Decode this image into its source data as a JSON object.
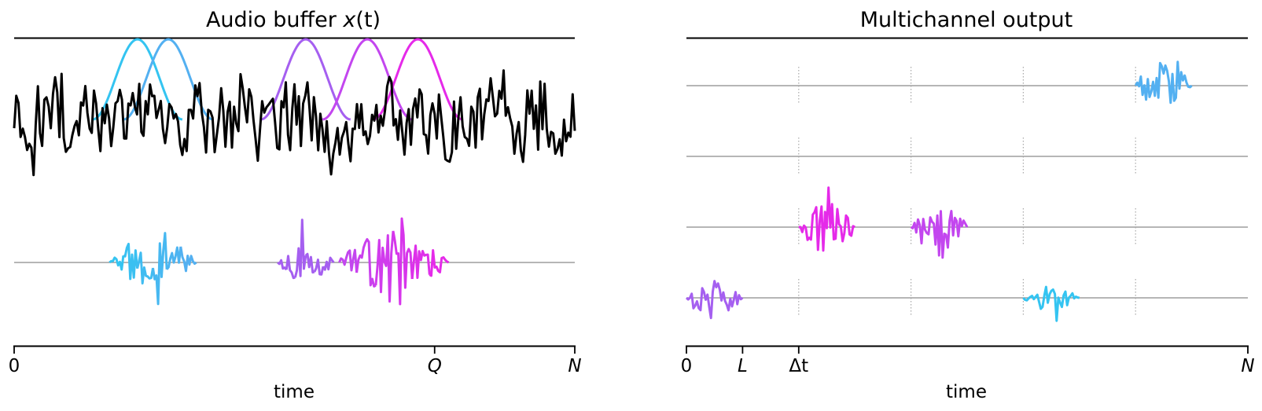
{
  "panels": {
    "left": {
      "title_prefix": "Audio buffer ",
      "title_var": "x",
      "title_suffix": "(t)",
      "xlabel": "time",
      "ticks": [
        {
          "label": "0",
          "italic": false,
          "at": 0
        },
        {
          "label": "Q",
          "italic": true,
          "at": 0.75
        },
        {
          "label": "N",
          "italic": true,
          "at": 1
        }
      ]
    },
    "right": {
      "title": "Multichannel output",
      "xlabel": "time",
      "ticks": [
        {
          "label": "0",
          "italic": false,
          "at": 0
        },
        {
          "label": "L",
          "italic": true,
          "at": 0.1
        },
        {
          "label": "Δt",
          "italic": false,
          "at": 0.2
        },
        {
          "label": "N",
          "italic": true,
          "at": 1
        }
      ]
    }
  },
  "colors": {
    "signal": "#000000",
    "cyan": "#34c4f1",
    "lightblue": "#53b0f1",
    "violet": "#a55ff0",
    "purple": "#c346ef",
    "magenta": "#e52ae9",
    "baseline": "#8a8a8a",
    "divider": "#a8a8a8"
  },
  "diagram": {
    "windows": [
      {
        "center": 0.22,
        "color": "cyan"
      },
      {
        "center": 0.275,
        "color": "lightblue"
      },
      {
        "center": 0.52,
        "color": "violet"
      },
      {
        "center": 0.63,
        "color": "purple"
      },
      {
        "center": 0.72,
        "color": "magenta"
      }
    ],
    "frames_left": [
      {
        "start": 0.17,
        "end": 0.325,
        "color_from": "cyan",
        "color_to": "lightblue",
        "amp": 1.0,
        "seed": 3
      },
      {
        "start": 0.47,
        "end": 0.57,
        "color_from": "violet",
        "color_to": "violet",
        "amp": 0.75,
        "seed": 7
      },
      {
        "start": 0.58,
        "end": 0.775,
        "color_from": "purple",
        "color_to": "magenta",
        "amp": 1.2,
        "seed": 11
      }
    ],
    "channels": [
      {
        "dividers": [
          0.2,
          0.4,
          0.6,
          0.8
        ],
        "frames": [
          {
            "start": 0.8,
            "end": 0.9,
            "color": "lightblue",
            "amp": 1.0,
            "seed": 21
          }
        ]
      },
      {
        "dividers": [
          0.2,
          0.4,
          0.6,
          0.8
        ],
        "frames": []
      },
      {
        "dividers": [
          0.2,
          0.4,
          0.6,
          0.8
        ],
        "frames": [
          {
            "start": 0.2,
            "end": 0.3,
            "color": "magenta",
            "amp": 0.95,
            "seed": 31
          },
          {
            "start": 0.4,
            "end": 0.5,
            "color": "purple",
            "amp": 0.9,
            "seed": 41
          }
        ]
      },
      {
        "dividers": [
          0.2,
          0.4,
          0.6,
          0.8
        ],
        "frames": [
          {
            "start": 0.0,
            "end": 0.1,
            "color": "violet",
            "amp": 0.65,
            "seed": 51
          },
          {
            "start": 0.6,
            "end": 0.7,
            "color": "cyan",
            "amp": 0.55,
            "seed": 61
          }
        ]
      }
    ]
  }
}
